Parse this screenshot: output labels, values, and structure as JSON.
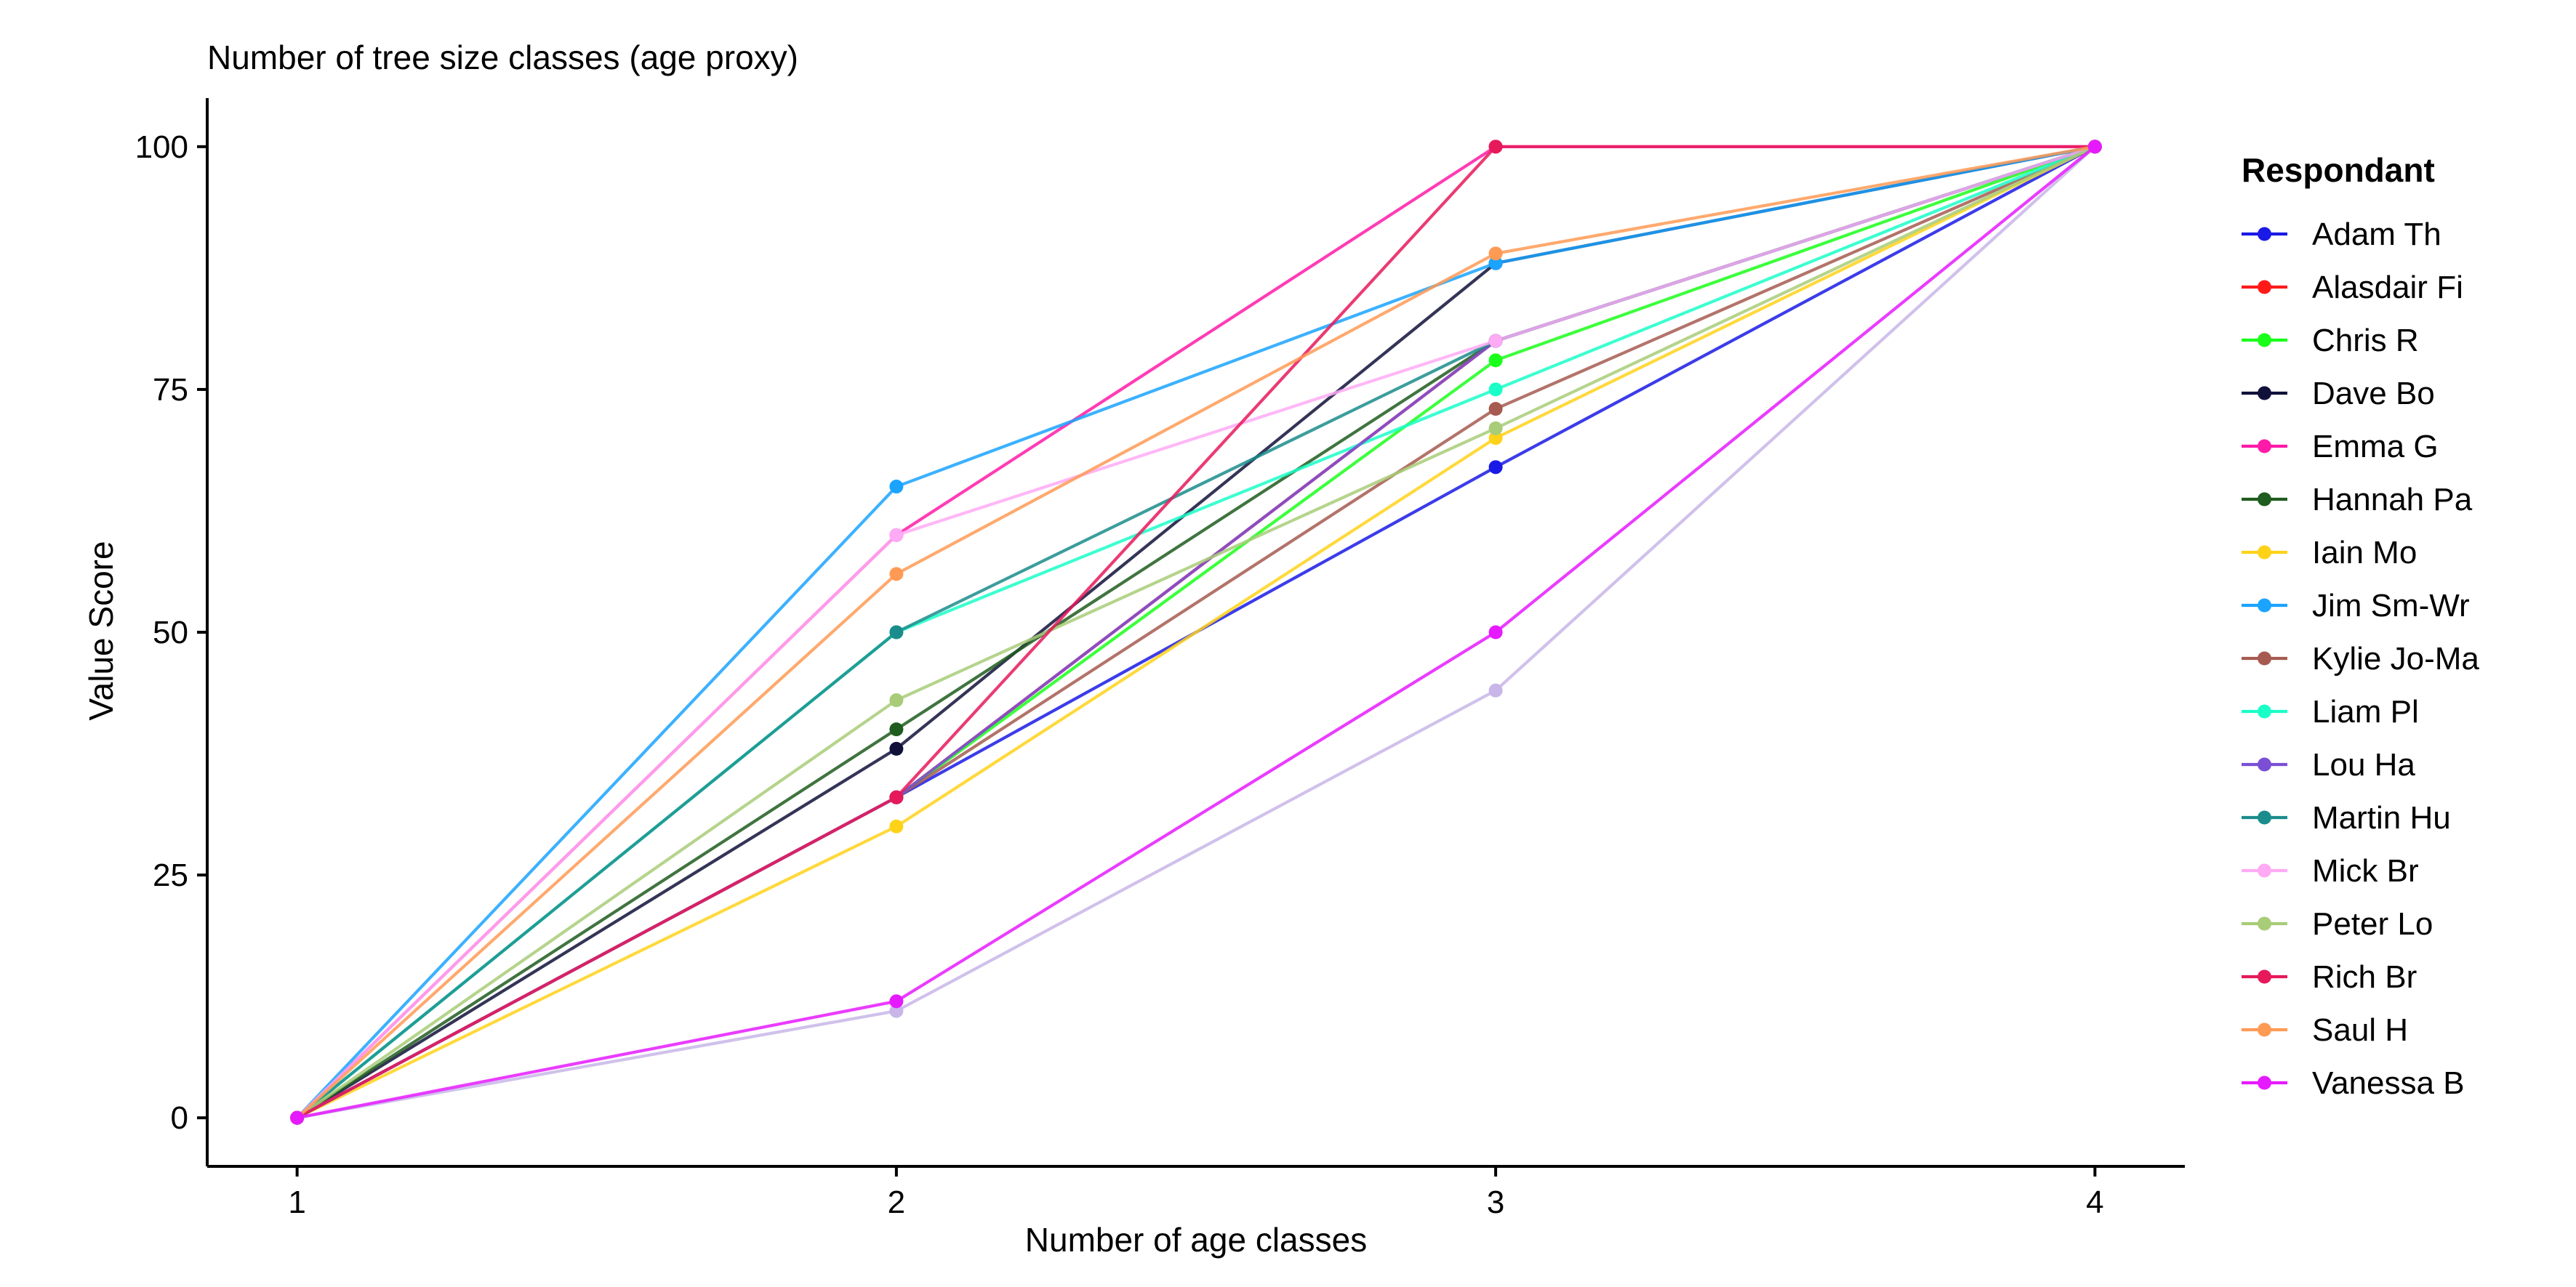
{
  "chart_data": {
    "type": "line",
    "title": "Number of tree size classes (age proxy)",
    "xlabel": "Number of age classes",
    "ylabel": "Value Score",
    "x": [
      1,
      2,
      3,
      4
    ],
    "x_ticks": [
      "1",
      "2",
      "3",
      "4"
    ],
    "y_ticks": [
      "0",
      "25",
      "50",
      "75",
      "100"
    ],
    "ylim": [
      -5,
      105
    ],
    "xlim": [
      0.85,
      4.15
    ],
    "grid": false,
    "legend": {
      "title": "Respondant",
      "position": "right"
    },
    "series": [
      {
        "name": "Adam Th",
        "color": "#1A1AE6",
        "values": [
          0,
          33,
          67,
          100
        ]
      },
      {
        "name": "Alasdair Fi",
        "color": "#FF1A1A",
        "values": [
          0,
          33,
          80,
          100
        ]
      },
      {
        "name": "Chris R",
        "color": "#1AFF1A",
        "values": [
          0,
          33,
          78,
          100
        ]
      },
      {
        "name": "Dave Bo",
        "color": "#10103A",
        "values": [
          0,
          38,
          88,
          100
        ]
      },
      {
        "name": "Emma G",
        "color": "#FF1AA8",
        "values": [
          0,
          60,
          100,
          100
        ]
      },
      {
        "name": "Hannah Pa",
        "color": "#1F5C1F",
        "values": [
          0,
          40,
          80,
          100
        ]
      },
      {
        "name": "Iain Mo",
        "color": "#FFD21A",
        "values": [
          0,
          30,
          70,
          100
        ]
      },
      {
        "name": "Jim Sm-Wr",
        "color": "#1AA3FF",
        "values": [
          0,
          65,
          88,
          100
        ]
      },
      {
        "name": "Kylie Jo-Ma",
        "color": "#A65A50",
        "values": [
          0,
          33,
          73,
          100
        ]
      },
      {
        "name": "Liam Pl",
        "color": "#1AFFC8",
        "values": [
          0,
          50,
          75,
          100
        ]
      },
      {
        "name": "Lou Ha",
        "color": "#7A4FD6",
        "values": [
          0,
          33,
          80,
          100
        ]
      },
      {
        "name": "Martin Hu",
        "color": "#1A8C8C",
        "values": [
          0,
          50,
          80,
          100
        ]
      },
      {
        "name": "Mick Br",
        "color": "#FFAAF5",
        "values": [
          0,
          60,
          80,
          100
        ]
      },
      {
        "name": "Peter Lo",
        "color": "#A8CC78",
        "values": [
          0,
          43,
          71,
          100
        ]
      },
      {
        "name": "Rich Br",
        "color": "#E6195A",
        "values": [
          0,
          33,
          100,
          100
        ]
      },
      {
        "name": "Saul H",
        "color": "#FF9A55",
        "values": [
          0,
          56,
          89,
          100
        ]
      },
      {
        "name": "Vanessa B",
        "color": "#E61AFF",
        "values": [
          0,
          12,
          50,
          100
        ]
      }
    ],
    "extra_series": [
      {
        "color": "#C8B6E8",
        "values": [
          0,
          11,
          44,
          100
        ]
      }
    ]
  }
}
